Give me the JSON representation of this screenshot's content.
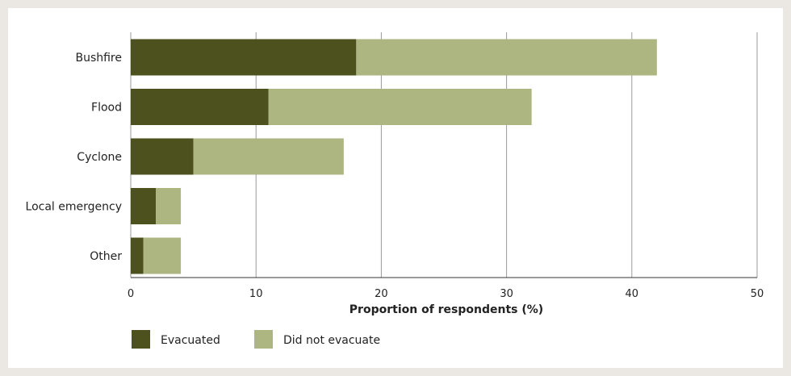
{
  "chart_data": {
    "type": "bar",
    "orientation": "horizontal",
    "stacked": true,
    "categories": [
      "Bushfire",
      "Flood",
      "Cyclone",
      "Local emergency",
      "Other"
    ],
    "series": [
      {
        "name": "Evacuated",
        "values": [
          18,
          11,
          5,
          2,
          1
        ],
        "color": "#4c511e"
      },
      {
        "name": "Did not evacuate",
        "values": [
          24,
          21,
          12,
          2,
          3
        ],
        "color": "#adb581"
      }
    ],
    "xlabel": "Proportion of respondents (%)",
    "xlim": [
      0,
      50
    ],
    "xticks": [
      0,
      10,
      20,
      30,
      40,
      50
    ],
    "grid": "vertical",
    "legend": "bottom-left"
  }
}
